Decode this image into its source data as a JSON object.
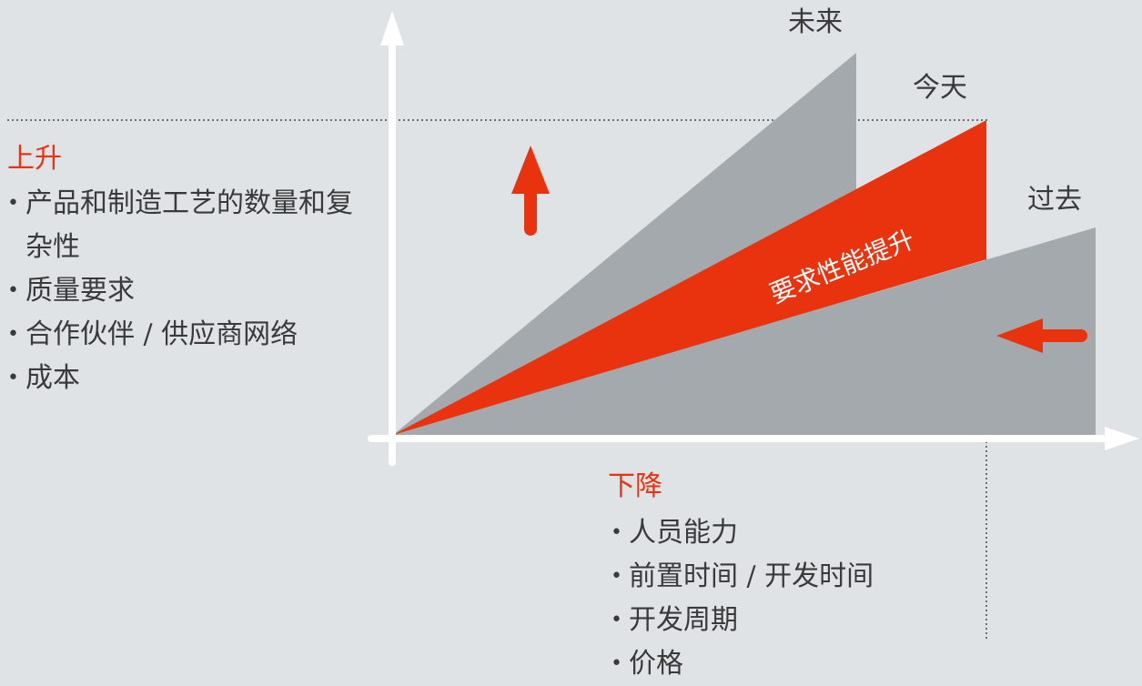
{
  "labels": {
    "future": "未来",
    "today": "今天",
    "past": "过去",
    "requirement": "要求性能提升"
  },
  "rise": {
    "heading": "上升",
    "items": [
      "产品和制造工艺的数量和复杂性",
      "质量要求",
      "合作伙伴 / 供应商网络",
      "成本"
    ]
  },
  "fall": {
    "heading": "下降",
    "items": [
      "人员能力",
      "前置时间 / 开发时间",
      "开发周期",
      "价格"
    ]
  },
  "colors": {
    "background": "#dfe3e6",
    "accent": "#e8330e",
    "gray_shape": "#a4a9ad",
    "axis": "#ffffff"
  }
}
